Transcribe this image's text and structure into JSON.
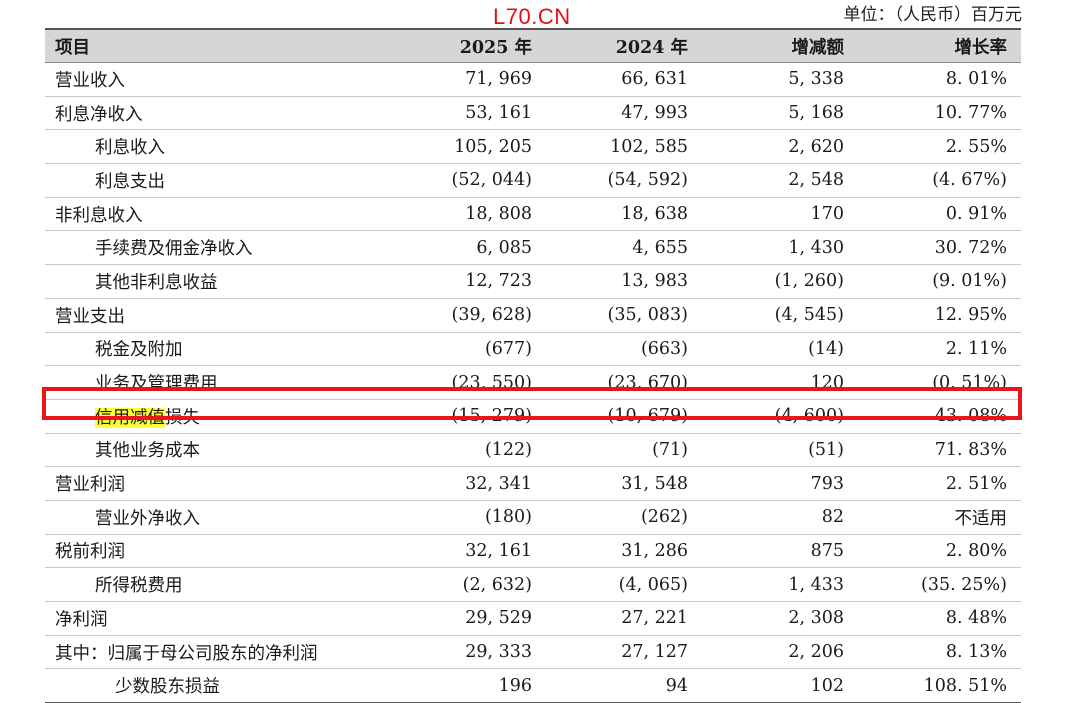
{
  "watermark": "L70.CN",
  "unit_note": "单位：（人民币）百万元",
  "headers": [
    "项目",
    "2025 年",
    "2024 年",
    "增减额",
    "增长率"
  ],
  "rows": [
    {
      "label": "营业收入",
      "indent": 0,
      "values": [
        "71, 969",
        "66, 631",
        "5, 338",
        "8. 01%"
      ]
    },
    {
      "label": "利息净收入",
      "indent": 0,
      "values": [
        "53, 161",
        "47, 993",
        "5, 168",
        "10. 77%"
      ]
    },
    {
      "label": "利息收入",
      "indent": 1,
      "values": [
        "105, 205",
        "102, 585",
        "2, 620",
        "2. 55%"
      ]
    },
    {
      "label": "利息支出",
      "indent": 1,
      "values": [
        "(52, 044)",
        "(54, 592)",
        "2, 548",
        "(4. 67%)"
      ]
    },
    {
      "label": "非利息收入",
      "indent": 0,
      "values": [
        "18, 808",
        "18, 638",
        "170",
        "0. 91%"
      ]
    },
    {
      "label": "手续费及佣金净收入",
      "indent": 1,
      "values": [
        "6, 085",
        "4, 655",
        "1, 430",
        "30. 72%"
      ]
    },
    {
      "label": "其他非利息收益",
      "indent": 1,
      "values": [
        "12, 723",
        "13, 983",
        "(1, 260)",
        "(9. 01%)"
      ]
    },
    {
      "label": "营业支出",
      "indent": 0,
      "values": [
        "(39, 628)",
        "(35, 083)",
        "(4, 545)",
        "12. 95%"
      ]
    },
    {
      "label": "税金及附加",
      "indent": 1,
      "values": [
        "(677)",
        "(663)",
        "(14)",
        "2. 11%"
      ]
    },
    {
      "label": "业务及管理费用",
      "indent": 1,
      "values": [
        "(23, 550)",
        "(23, 670)",
        "120",
        "(0. 51%)"
      ]
    },
    {
      "label": "信用减值损失",
      "label_highlight": "信用减值",
      "label_rest": "损失",
      "indent": 1,
      "values": [
        "(15, 279)",
        "(10, 679)",
        "(4, 600)",
        "43. 08%"
      ]
    },
    {
      "label": "其他业务成本",
      "indent": 1,
      "values": [
        "(122)",
        "(71)",
        "(51)",
        "71. 83%"
      ]
    },
    {
      "label": "营业利润",
      "indent": 0,
      "values": [
        "32, 341",
        "31, 548",
        "793",
        "2. 51%"
      ]
    },
    {
      "label": "营业外净收入",
      "indent": 1,
      "values": [
        "(180)",
        "(262)",
        "82",
        "不适用"
      ]
    },
    {
      "label": "税前利润",
      "indent": 0,
      "values": [
        "32, 161",
        "31, 286",
        "875",
        "2. 80%"
      ]
    },
    {
      "label": "所得税费用",
      "indent": 1,
      "values": [
        "(2, 632)",
        "(4, 065)",
        "1, 433",
        "(35. 25%)"
      ]
    },
    {
      "label": "净利润",
      "indent": 0,
      "values": [
        "29, 529",
        "27, 221",
        "2, 308",
        "8. 48%"
      ]
    },
    {
      "label": "其中：归属于母公司股东的净利润",
      "indent": 0,
      "values": [
        "29, 333",
        "27, 127",
        "2, 206",
        "8. 13%"
      ]
    },
    {
      "label": "少数股东损益",
      "indent": 2,
      "values": [
        "196",
        "94",
        "102",
        "108. 51%"
      ]
    }
  ],
  "colors": {
    "highlight_box": "#e8161b",
    "text_highlight": "#ffff3a",
    "header_bg": "#d6d6d6",
    "watermark": "#e0101a"
  }
}
